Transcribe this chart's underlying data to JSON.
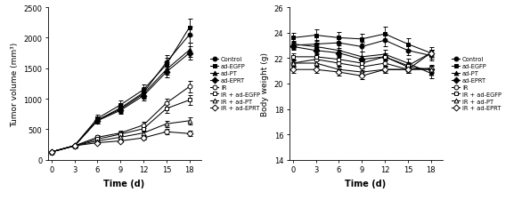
{
  "time": [
    0,
    3,
    6,
    9,
    12,
    15,
    18
  ],
  "tumor_volume": {
    "Control": [
      130,
      230,
      650,
      850,
      1100,
      1600,
      2050
    ],
    "ad-EGFP": [
      130,
      235,
      680,
      900,
      1150,
      1560,
      2170
    ],
    "ad-PT": [
      130,
      230,
      650,
      830,
      1080,
      1480,
      1800
    ],
    "ad-EPRT": [
      130,
      230,
      640,
      810,
      1050,
      1440,
      1750
    ],
    "IR": [
      130,
      230,
      370,
      440,
      570,
      930,
      1200
    ],
    "IR+ad-EGFP": [
      130,
      230,
      340,
      420,
      510,
      840,
      980
    ],
    "IR+ad-PT": [
      130,
      230,
      310,
      370,
      440,
      590,
      640
    ],
    "IR+ad-EPRT": [
      130,
      230,
      280,
      310,
      360,
      460,
      430
    ]
  },
  "tumor_err": {
    "Control": [
      15,
      25,
      55,
      65,
      85,
      110,
      130
    ],
    "ad-EGFP": [
      15,
      25,
      58,
      68,
      90,
      105,
      140
    ],
    "ad-PT": [
      15,
      25,
      52,
      58,
      78,
      92,
      115
    ],
    "ad-EPRT": [
      15,
      25,
      50,
      55,
      72,
      88,
      108
    ],
    "IR": [
      15,
      20,
      32,
      38,
      52,
      72,
      95
    ],
    "IR+ad-EGFP": [
      15,
      20,
      30,
      35,
      47,
      67,
      82
    ],
    "IR+ad-PT": [
      15,
      20,
      27,
      30,
      40,
      52,
      62
    ],
    "IR+ad-EPRT": [
      15,
      20,
      23,
      27,
      32,
      42,
      47
    ]
  },
  "body_weight": {
    "Control": [
      23.0,
      23.1,
      23.2,
      22.9,
      23.4,
      22.6,
      22.2
    ],
    "ad-EGFP": [
      23.6,
      23.8,
      23.6,
      23.5,
      23.9,
      23.1,
      22.4
    ],
    "ad-PT": [
      23.1,
      22.9,
      22.6,
      22.1,
      22.3,
      21.6,
      20.8
    ],
    "ad-EPRT": [
      22.9,
      22.6,
      22.4,
      21.9,
      22.1,
      21.3,
      21.1
    ],
    "IR": [
      21.6,
      21.9,
      21.6,
      21.3,
      21.6,
      21.1,
      21.2
    ],
    "IR+ad-EGFP": [
      22.1,
      22.1,
      21.9,
      21.6,
      22.1,
      21.4,
      22.4
    ],
    "IR+ad-PT": [
      21.6,
      21.6,
      21.1,
      20.9,
      21.1,
      21.1,
      21.1
    ],
    "IR+ad-EPRT": [
      21.1,
      21.1,
      20.9,
      20.6,
      21.1,
      21.1,
      22.4
    ]
  },
  "body_err": {
    "Control": [
      0.3,
      0.35,
      0.38,
      0.38,
      0.48,
      0.38,
      0.38
    ],
    "ad-EGFP": [
      0.38,
      0.48,
      0.48,
      0.38,
      0.58,
      0.48,
      0.48
    ],
    "ad-PT": [
      0.28,
      0.28,
      0.38,
      0.38,
      0.38,
      0.38,
      0.38
    ],
    "ad-EPRT": [
      0.28,
      0.28,
      0.28,
      0.28,
      0.28,
      0.28,
      0.28
    ],
    "IR": [
      0.28,
      0.28,
      0.28,
      0.28,
      0.28,
      0.28,
      0.28
    ],
    "IR+ad-EGFP": [
      0.28,
      0.28,
      0.28,
      0.28,
      0.28,
      0.28,
      0.28
    ],
    "IR+ad-PT": [
      0.28,
      0.28,
      0.28,
      0.28,
      0.28,
      0.28,
      0.28
    ],
    "IR+ad-EPRT": [
      0.28,
      0.28,
      0.28,
      0.28,
      0.28,
      0.28,
      0.28
    ]
  },
  "series_styles": {
    "Control": {
      "color": "#000000",
      "marker": "o",
      "markersize": 3.5,
      "fillstyle": "full",
      "linestyle": "-"
    },
    "ad-EGFP": {
      "color": "#000000",
      "marker": "s",
      "markersize": 3.5,
      "fillstyle": "full",
      "linestyle": "-"
    },
    "ad-PT": {
      "color": "#000000",
      "marker": "^",
      "markersize": 3.5,
      "fillstyle": "full",
      "linestyle": "-"
    },
    "ad-EPRT": {
      "color": "#000000",
      "marker": "D",
      "markersize": 3.5,
      "fillstyle": "full",
      "linestyle": "-"
    },
    "IR": {
      "color": "#000000",
      "marker": "o",
      "markersize": 3.5,
      "fillstyle": "none",
      "linestyle": "-"
    },
    "IR+ad-EGFP": {
      "color": "#000000",
      "marker": "s",
      "markersize": 3.5,
      "fillstyle": "none",
      "linestyle": "-"
    },
    "IR+ad-PT": {
      "color": "#000000",
      "marker": "^",
      "markersize": 3.5,
      "fillstyle": "none",
      "linestyle": "-"
    },
    "IR+ad-EPRT": {
      "color": "#000000",
      "marker": "D",
      "markersize": 3.5,
      "fillstyle": "none",
      "linestyle": "-"
    }
  },
  "legend_labels": [
    "Control",
    "ad-EGFP",
    "ad-PT",
    "ad-EPRT",
    "IR",
    "IR + ad-EGFP",
    "IR + ad-PT",
    "IR + ad-EPRT"
  ],
  "tumor_ylabel": "Tumor volume (mm³)",
  "body_ylabel": "Body weight (g)",
  "xlabel": "Time (d)",
  "tumor_ylim": [
    0,
    2500
  ],
  "body_ylim": [
    14,
    26
  ],
  "tumor_yticks": [
    0,
    500,
    1000,
    1500,
    2000,
    2500
  ],
  "body_yticks": [
    14,
    16,
    18,
    20,
    22,
    24,
    26
  ],
  "xticks": [
    0,
    3,
    6,
    9,
    12,
    15,
    18
  ]
}
